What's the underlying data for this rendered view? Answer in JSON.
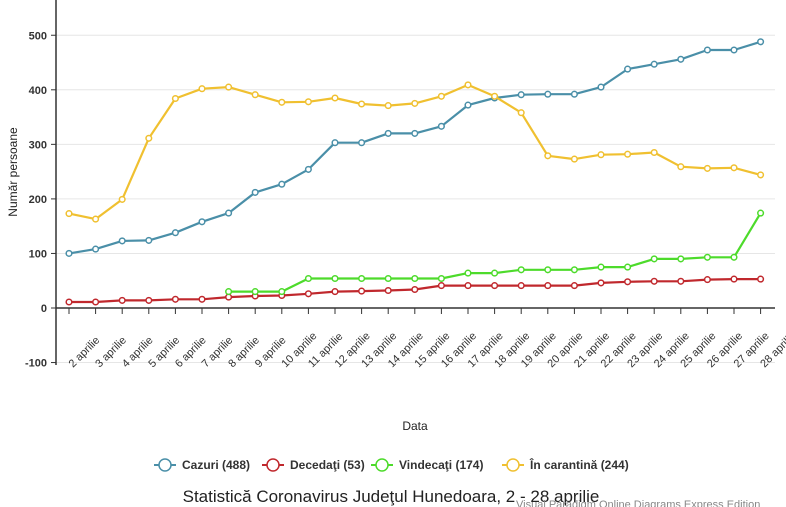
{
  "chart_data": {
    "type": "line",
    "title": "Statistică Coronavirus Judeţul Hunedoara, 2 - 28 aprilie",
    "xlabel": "Data",
    "ylabel": "Număr persoane",
    "ylim": [
      -100,
      550
    ],
    "yticks": [
      -100,
      0,
      100,
      200,
      300,
      400,
      500
    ],
    "grid": true,
    "legend_position": "bottom",
    "categories": [
      "2 aprilie",
      "3 aprilie",
      "4 aprilie",
      "5 aprilie",
      "6 aprilie",
      "7 aprilie",
      "8 aprilie",
      "9 aprilie",
      "10 aprilie",
      "11 aprilie",
      "12 aprilie",
      "13 aprilie",
      "14 aprilie",
      "15 aprilie",
      "16 aprilie",
      "17 aprilie",
      "18 aprilie",
      "19 aprilie",
      "20 aprilie",
      "21 aprilie",
      "22 aprilie",
      "23 aprilie",
      "24 aprilie",
      "25 aprilie",
      "26 aprilie",
      "27 aprilie",
      "28 aprilie"
    ],
    "series": [
      {
        "name": "Cazuri (488)",
        "color": "#4a8fa8",
        "values": [
          100,
          108,
          123,
          124,
          138,
          158,
          174,
          212,
          227,
          254,
          303,
          303,
          320,
          320,
          333,
          372,
          385,
          391,
          392,
          392,
          405,
          438,
          447,
          456,
          473,
          473,
          488
        ]
      },
      {
        "name": "Decedaţi (53)",
        "color": "#c0282d",
        "values": [
          11,
          11,
          14,
          14,
          16,
          16,
          20,
          22,
          23,
          26,
          30,
          31,
          32,
          34,
          41,
          41,
          41,
          41,
          41,
          41,
          46,
          48,
          49,
          49,
          52,
          53,
          53
        ]
      },
      {
        "name": "Vindecaţi (174)",
        "color": "#4ddb2b",
        "values": [
          null,
          null,
          null,
          null,
          null,
          null,
          30,
          30,
          30,
          54,
          54,
          54,
          54,
          54,
          54,
          64,
          64,
          70,
          70,
          70,
          75,
          75,
          90,
          90,
          93,
          93,
          174
        ]
      },
      {
        "name": "În carantină (244)",
        "color": "#f0c030",
        "values": [
          173,
          163,
          199,
          311,
          384,
          402,
          405,
          391,
          377,
          378,
          385,
          374,
          371,
          375,
          388,
          409,
          388,
          358,
          279,
          273,
          281,
          282,
          285,
          259,
          256,
          257,
          244
        ]
      }
    ]
  },
  "watermark": "Visual Paradigm Online Diagrams Express Edition"
}
